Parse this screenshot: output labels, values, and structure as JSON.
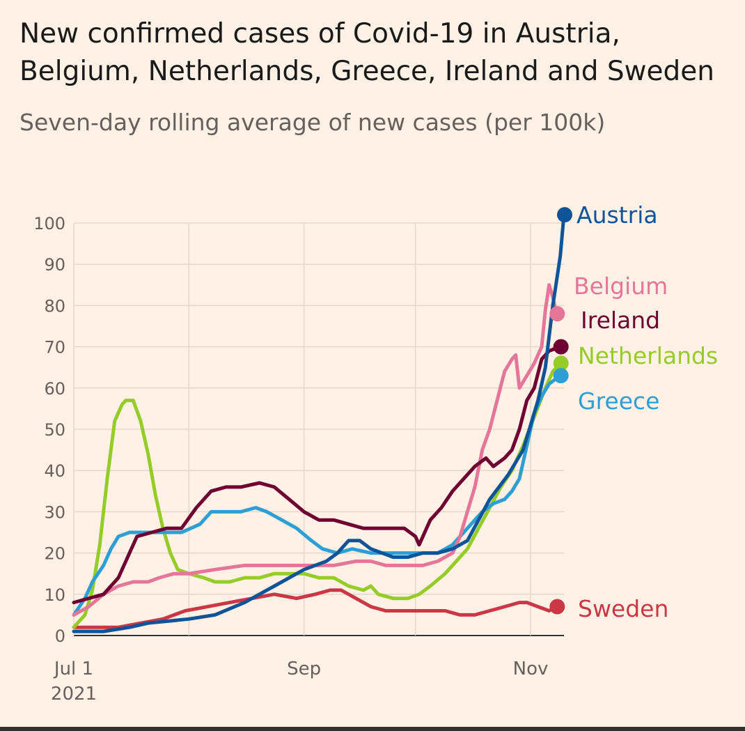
{
  "chart_data": {
    "type": "line",
    "title": "New confirmed cases of Covid-19 in Austria, Belgium, Netherlands, Greece, Ireland and Sweden",
    "subtitle": "Seven-day rolling average of new cases (per 100k)",
    "xlabel": "",
    "ylabel": "",
    "ylim": [
      0,
      100
    ],
    "yticks": [
      0,
      10,
      20,
      30,
      40,
      50,
      60,
      70,
      80,
      90,
      100
    ],
    "x_day_range": [
      0,
      128
    ],
    "xticks": [
      {
        "day": 0,
        "label": "Jul 1",
        "sublabel": "2021"
      },
      {
        "day": 62,
        "label": "Sep",
        "sublabel": ""
      },
      {
        "day": 123,
        "label": "Nov",
        "sublabel": ""
      }
    ],
    "grid": true,
    "legend": "end-of-line labels",
    "series": [
      {
        "name": "Austria",
        "color": "#0f5499",
        "endpoint": 102,
        "points": [
          [
            0,
            1
          ],
          [
            8,
            1
          ],
          [
            15,
            2
          ],
          [
            20,
            3
          ],
          [
            31,
            4
          ],
          [
            38,
            5
          ],
          [
            46,
            8
          ],
          [
            54,
            12
          ],
          [
            62,
            16
          ],
          [
            68,
            18
          ],
          [
            71,
            20
          ],
          [
            74,
            23
          ],
          [
            77,
            23
          ],
          [
            80,
            21
          ],
          [
            86,
            19
          ],
          [
            90,
            19
          ],
          [
            94,
            20
          ],
          [
            98,
            20
          ],
          [
            102,
            21
          ],
          [
            106,
            23
          ],
          [
            109,
            28
          ],
          [
            112,
            33
          ],
          [
            117,
            39
          ],
          [
            121,
            45
          ],
          [
            125,
            57
          ],
          [
            127,
            65
          ],
          [
            129,
            80
          ],
          [
            131,
            92
          ],
          [
            132,
            102
          ]
        ]
      },
      {
        "name": "Belgium",
        "color": "#e5769a",
        "endpoint": 78,
        "points": [
          [
            0,
            5
          ],
          [
            4,
            7
          ],
          [
            8,
            10
          ],
          [
            12,
            12
          ],
          [
            16,
            13
          ],
          [
            20,
            13
          ],
          [
            23,
            14
          ],
          [
            27,
            15
          ],
          [
            31,
            15
          ],
          [
            38,
            16
          ],
          [
            46,
            17
          ],
          [
            54,
            17
          ],
          [
            62,
            17
          ],
          [
            70,
            17
          ],
          [
            76,
            18
          ],
          [
            80,
            18
          ],
          [
            84,
            17
          ],
          [
            90,
            17
          ],
          [
            94,
            17
          ],
          [
            98,
            18
          ],
          [
            102,
            20
          ],
          [
            104,
            24
          ],
          [
            106,
            30
          ],
          [
            108,
            36
          ],
          [
            110,
            45
          ],
          [
            112,
            50
          ],
          [
            114,
            57
          ],
          [
            116,
            64
          ],
          [
            118,
            67
          ],
          [
            119,
            68
          ],
          [
            120,
            60
          ],
          [
            122,
            63
          ],
          [
            124,
            66
          ],
          [
            126,
            70
          ],
          [
            127,
            79
          ],
          [
            128,
            85
          ],
          [
            129,
            82
          ],
          [
            130,
            78
          ]
        ]
      },
      {
        "name": "Ireland",
        "color": "#6f0032",
        "endpoint": 70,
        "points": [
          [
            0,
            8
          ],
          [
            4,
            9
          ],
          [
            8,
            10
          ],
          [
            12,
            14
          ],
          [
            15,
            20
          ],
          [
            17,
            24
          ],
          [
            21,
            25
          ],
          [
            25,
            26
          ],
          [
            29,
            26
          ],
          [
            33,
            31
          ],
          [
            37,
            35
          ],
          [
            41,
            36
          ],
          [
            45,
            36
          ],
          [
            50,
            37
          ],
          [
            54,
            36
          ],
          [
            58,
            33
          ],
          [
            62,
            30
          ],
          [
            66,
            28
          ],
          [
            70,
            28
          ],
          [
            74,
            27
          ],
          [
            78,
            26
          ],
          [
            82,
            26
          ],
          [
            86,
            26
          ],
          [
            89,
            26
          ],
          [
            92,
            24
          ],
          [
            93,
            22
          ],
          [
            96,
            28
          ],
          [
            99,
            31
          ],
          [
            102,
            35
          ],
          [
            105,
            38
          ],
          [
            108,
            41
          ],
          [
            111,
            43
          ],
          [
            113,
            41
          ],
          [
            116,
            43
          ],
          [
            118,
            45
          ],
          [
            120,
            50
          ],
          [
            122,
            57
          ],
          [
            124,
            60
          ],
          [
            126,
            67
          ],
          [
            128,
            69
          ],
          [
            131,
            70
          ]
        ]
      },
      {
        "name": "Netherlands",
        "color": "#96cc28",
        "endpoint": 66,
        "points": [
          [
            0,
            2
          ],
          [
            3,
            5
          ],
          [
            5,
            11
          ],
          [
            7,
            22
          ],
          [
            9,
            38
          ],
          [
            11,
            52
          ],
          [
            13,
            56
          ],
          [
            14,
            57
          ],
          [
            16,
            57
          ],
          [
            18,
            52
          ],
          [
            20,
            44
          ],
          [
            22,
            34
          ],
          [
            24,
            26
          ],
          [
            26,
            20
          ],
          [
            28,
            16
          ],
          [
            31,
            15
          ],
          [
            35,
            14
          ],
          [
            38,
            13
          ],
          [
            42,
            13
          ],
          [
            46,
            14
          ],
          [
            50,
            14
          ],
          [
            54,
            15
          ],
          [
            58,
            15
          ],
          [
            62,
            15
          ],
          [
            66,
            14
          ],
          [
            70,
            14
          ],
          [
            74,
            12
          ],
          [
            78,
            11
          ],
          [
            80,
            12
          ],
          [
            82,
            10
          ],
          [
            86,
            9
          ],
          [
            90,
            9
          ],
          [
            93,
            10
          ],
          [
            96,
            12
          ],
          [
            100,
            15
          ],
          [
            103,
            18
          ],
          [
            106,
            21
          ],
          [
            109,
            26
          ],
          [
            112,
            31
          ],
          [
            115,
            36
          ],
          [
            118,
            40
          ],
          [
            121,
            46
          ],
          [
            124,
            53
          ],
          [
            127,
            60
          ],
          [
            129,
            64
          ],
          [
            131,
            66
          ]
        ]
      },
      {
        "name": "Greece",
        "color": "#2e9ed4",
        "endpoint": 63,
        "points": [
          [
            0,
            5
          ],
          [
            3,
            9
          ],
          [
            5,
            13
          ],
          [
            8,
            17
          ],
          [
            10,
            21
          ],
          [
            12,
            24
          ],
          [
            15,
            25
          ],
          [
            20,
            25
          ],
          [
            24,
            25
          ],
          [
            29,
            25
          ],
          [
            34,
            27
          ],
          [
            37,
            30
          ],
          [
            41,
            30
          ],
          [
            45,
            30
          ],
          [
            49,
            31
          ],
          [
            52,
            30
          ],
          [
            56,
            28
          ],
          [
            60,
            26
          ],
          [
            64,
            23
          ],
          [
            67,
            21
          ],
          [
            71,
            20
          ],
          [
            75,
            21
          ],
          [
            80,
            20
          ],
          [
            86,
            20
          ],
          [
            90,
            20
          ],
          [
            94,
            20
          ],
          [
            98,
            20
          ],
          [
            102,
            22
          ],
          [
            106,
            26
          ],
          [
            110,
            30
          ],
          [
            113,
            32
          ],
          [
            116,
            33
          ],
          [
            118,
            35
          ],
          [
            120,
            38
          ],
          [
            122,
            46
          ],
          [
            124,
            54
          ],
          [
            126,
            58
          ],
          [
            128,
            61
          ],
          [
            131,
            63
          ]
        ]
      },
      {
        "name": "Sweden",
        "color": "#cc3746",
        "endpoint": 7,
        "points": [
          [
            0,
            2
          ],
          [
            6,
            2
          ],
          [
            12,
            2
          ],
          [
            18,
            3
          ],
          [
            24,
            4
          ],
          [
            30,
            6
          ],
          [
            36,
            7
          ],
          [
            42,
            8
          ],
          [
            48,
            9
          ],
          [
            54,
            10
          ],
          [
            60,
            9
          ],
          [
            65,
            10
          ],
          [
            69,
            11
          ],
          [
            72,
            11
          ],
          [
            76,
            9
          ],
          [
            80,
            7
          ],
          [
            84,
            6
          ],
          [
            90,
            6
          ],
          [
            96,
            6
          ],
          [
            100,
            6
          ],
          [
            104,
            5
          ],
          [
            108,
            5
          ],
          [
            112,
            6
          ],
          [
            116,
            7
          ],
          [
            120,
            8
          ],
          [
            122,
            8
          ],
          [
            125,
            7
          ],
          [
            128,
            6
          ],
          [
            130,
            7
          ]
        ]
      }
    ]
  }
}
